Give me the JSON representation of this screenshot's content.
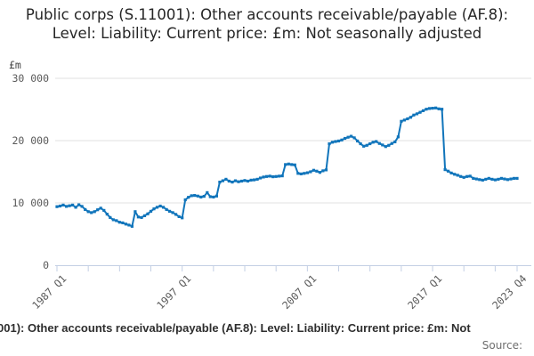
{
  "title": "Public corps (S.11001): Other accounts receivable/payable (AF.8): Level: Liability: Current price: £m: Not seasonally adjusted",
  "y_axis": {
    "unit_label": "£m",
    "ticks": [
      "30 000",
      "20 000",
      "10 000",
      "0"
    ]
  },
  "x_axis": {
    "labels": [
      "1987 Q1",
      "1997 Q1",
      "2007 Q1",
      "2017 Q1",
      "2023 Q4"
    ]
  },
  "footer": {
    "caption_visible_text": "001): Other accounts receivable/payable (AF.8): Level: Liability: Current price: £m: Not",
    "source_label": "Source:"
  },
  "colors": {
    "line": "#1175bb",
    "grid": "#e2e2e2",
    "axis": "#c3cfe4",
    "tick_text": "#595959",
    "title_text": "#262626"
  },
  "chart_data": {
    "type": "line",
    "title": "Public corps (S.11001): Other accounts receivable/payable (AF.8): Level: Liability: Current price: £m: Not seasonally adjusted",
    "unit": "£m",
    "frequency": "quarterly",
    "x_start": "1987 Q1",
    "x_end": "2023 Q4",
    "ylim": [
      0,
      30000
    ],
    "y_ticks": [
      0,
      10000,
      20000,
      30000
    ],
    "x_tick_labels": [
      "1987 Q1",
      "1997 Q1",
      "2007 Q1",
      "2017 Q1",
      "2023 Q4"
    ],
    "x_tick_quarters": [
      0,
      40,
      80,
      120,
      147
    ],
    "minor_tick_every_quarters": 10,
    "grid": "horizontal",
    "legend": "none",
    "marker": "square",
    "series": [
      {
        "name": "Public corps (S.11001): Other accounts receivable/payable (AF.8): Level: Liability: Current price: £m: Not seasonally adjusted",
        "values": [
          9400,
          9500,
          9650,
          9450,
          9550,
          9650,
          9300,
          9700,
          9450,
          8950,
          8600,
          8450,
          8600,
          8900,
          9150,
          8800,
          8200,
          7650,
          7300,
          7150,
          6900,
          6800,
          6600,
          6450,
          6250,
          8600,
          7750,
          7650,
          7950,
          8250,
          8650,
          9050,
          9300,
          9500,
          9300,
          8950,
          8650,
          8450,
          8150,
          7800,
          7600,
          10500,
          10900,
          11150,
          11200,
          11100,
          10950,
          11050,
          11650,
          11000,
          10950,
          11100,
          13350,
          13550,
          13800,
          13500,
          13350,
          13550,
          13400,
          13500,
          13600,
          13500,
          13650,
          13700,
          13800,
          14000,
          14150,
          14250,
          14300,
          14200,
          14250,
          14300,
          14350,
          16150,
          16250,
          16150,
          16100,
          14750,
          14650,
          14750,
          14850,
          15000,
          15250,
          15100,
          14900,
          15150,
          15300,
          19500,
          19750,
          19850,
          19950,
          20100,
          20350,
          20550,
          20700,
          20450,
          19950,
          19500,
          19100,
          19250,
          19500,
          19750,
          19850,
          19550,
          19300,
          19050,
          19250,
          19550,
          19800,
          20600,
          23100,
          23300,
          23500,
          23750,
          24100,
          24300,
          24550,
          24800,
          25050,
          25150,
          25200,
          25250,
          25100,
          25050,
          15350,
          15100,
          14800,
          14600,
          14450,
          14250,
          14100,
          14250,
          14300,
          13950,
          13850,
          13750,
          13650,
          13800,
          13950,
          13800,
          13700,
          13800,
          13950,
          13850,
          13750,
          13850,
          13950,
          13950
        ]
      }
    ]
  }
}
